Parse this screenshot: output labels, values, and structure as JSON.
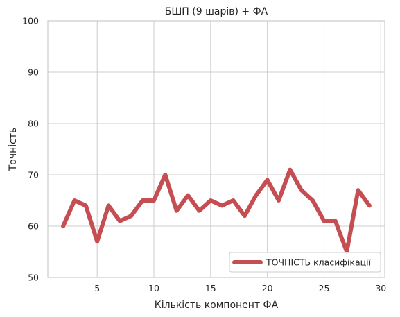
{
  "chart_data": {
    "type": "line",
    "title": "БШП (9 шарів) + ФА",
    "xlabel": "Кількість компонент ФА",
    "ylabel": "Точність",
    "xlim": [
      0.65,
      30.35
    ],
    "ylim": [
      50,
      100
    ],
    "xticks": [
      5,
      10,
      15,
      20,
      25,
      30
    ],
    "yticks": [
      50,
      60,
      70,
      80,
      90,
      100
    ],
    "grid": true,
    "legend_position": "bottom-right",
    "series": [
      {
        "name": "ТОЧНІСТЬ класифікації",
        "color": "#c44e52",
        "x": [
          2,
          3,
          4,
          5,
          6,
          7,
          8,
          9,
          10,
          11,
          12,
          13,
          14,
          15,
          16,
          17,
          18,
          19,
          20,
          21,
          22,
          23,
          24,
          25,
          26,
          27,
          28,
          29
        ],
        "y": [
          60,
          65,
          64,
          57,
          64,
          61,
          62,
          65,
          65,
          70,
          63,
          66,
          63,
          65,
          64,
          65,
          62,
          66,
          69,
          65,
          71,
          67,
          65,
          61,
          61,
          55,
          67,
          64
        ]
      }
    ]
  }
}
